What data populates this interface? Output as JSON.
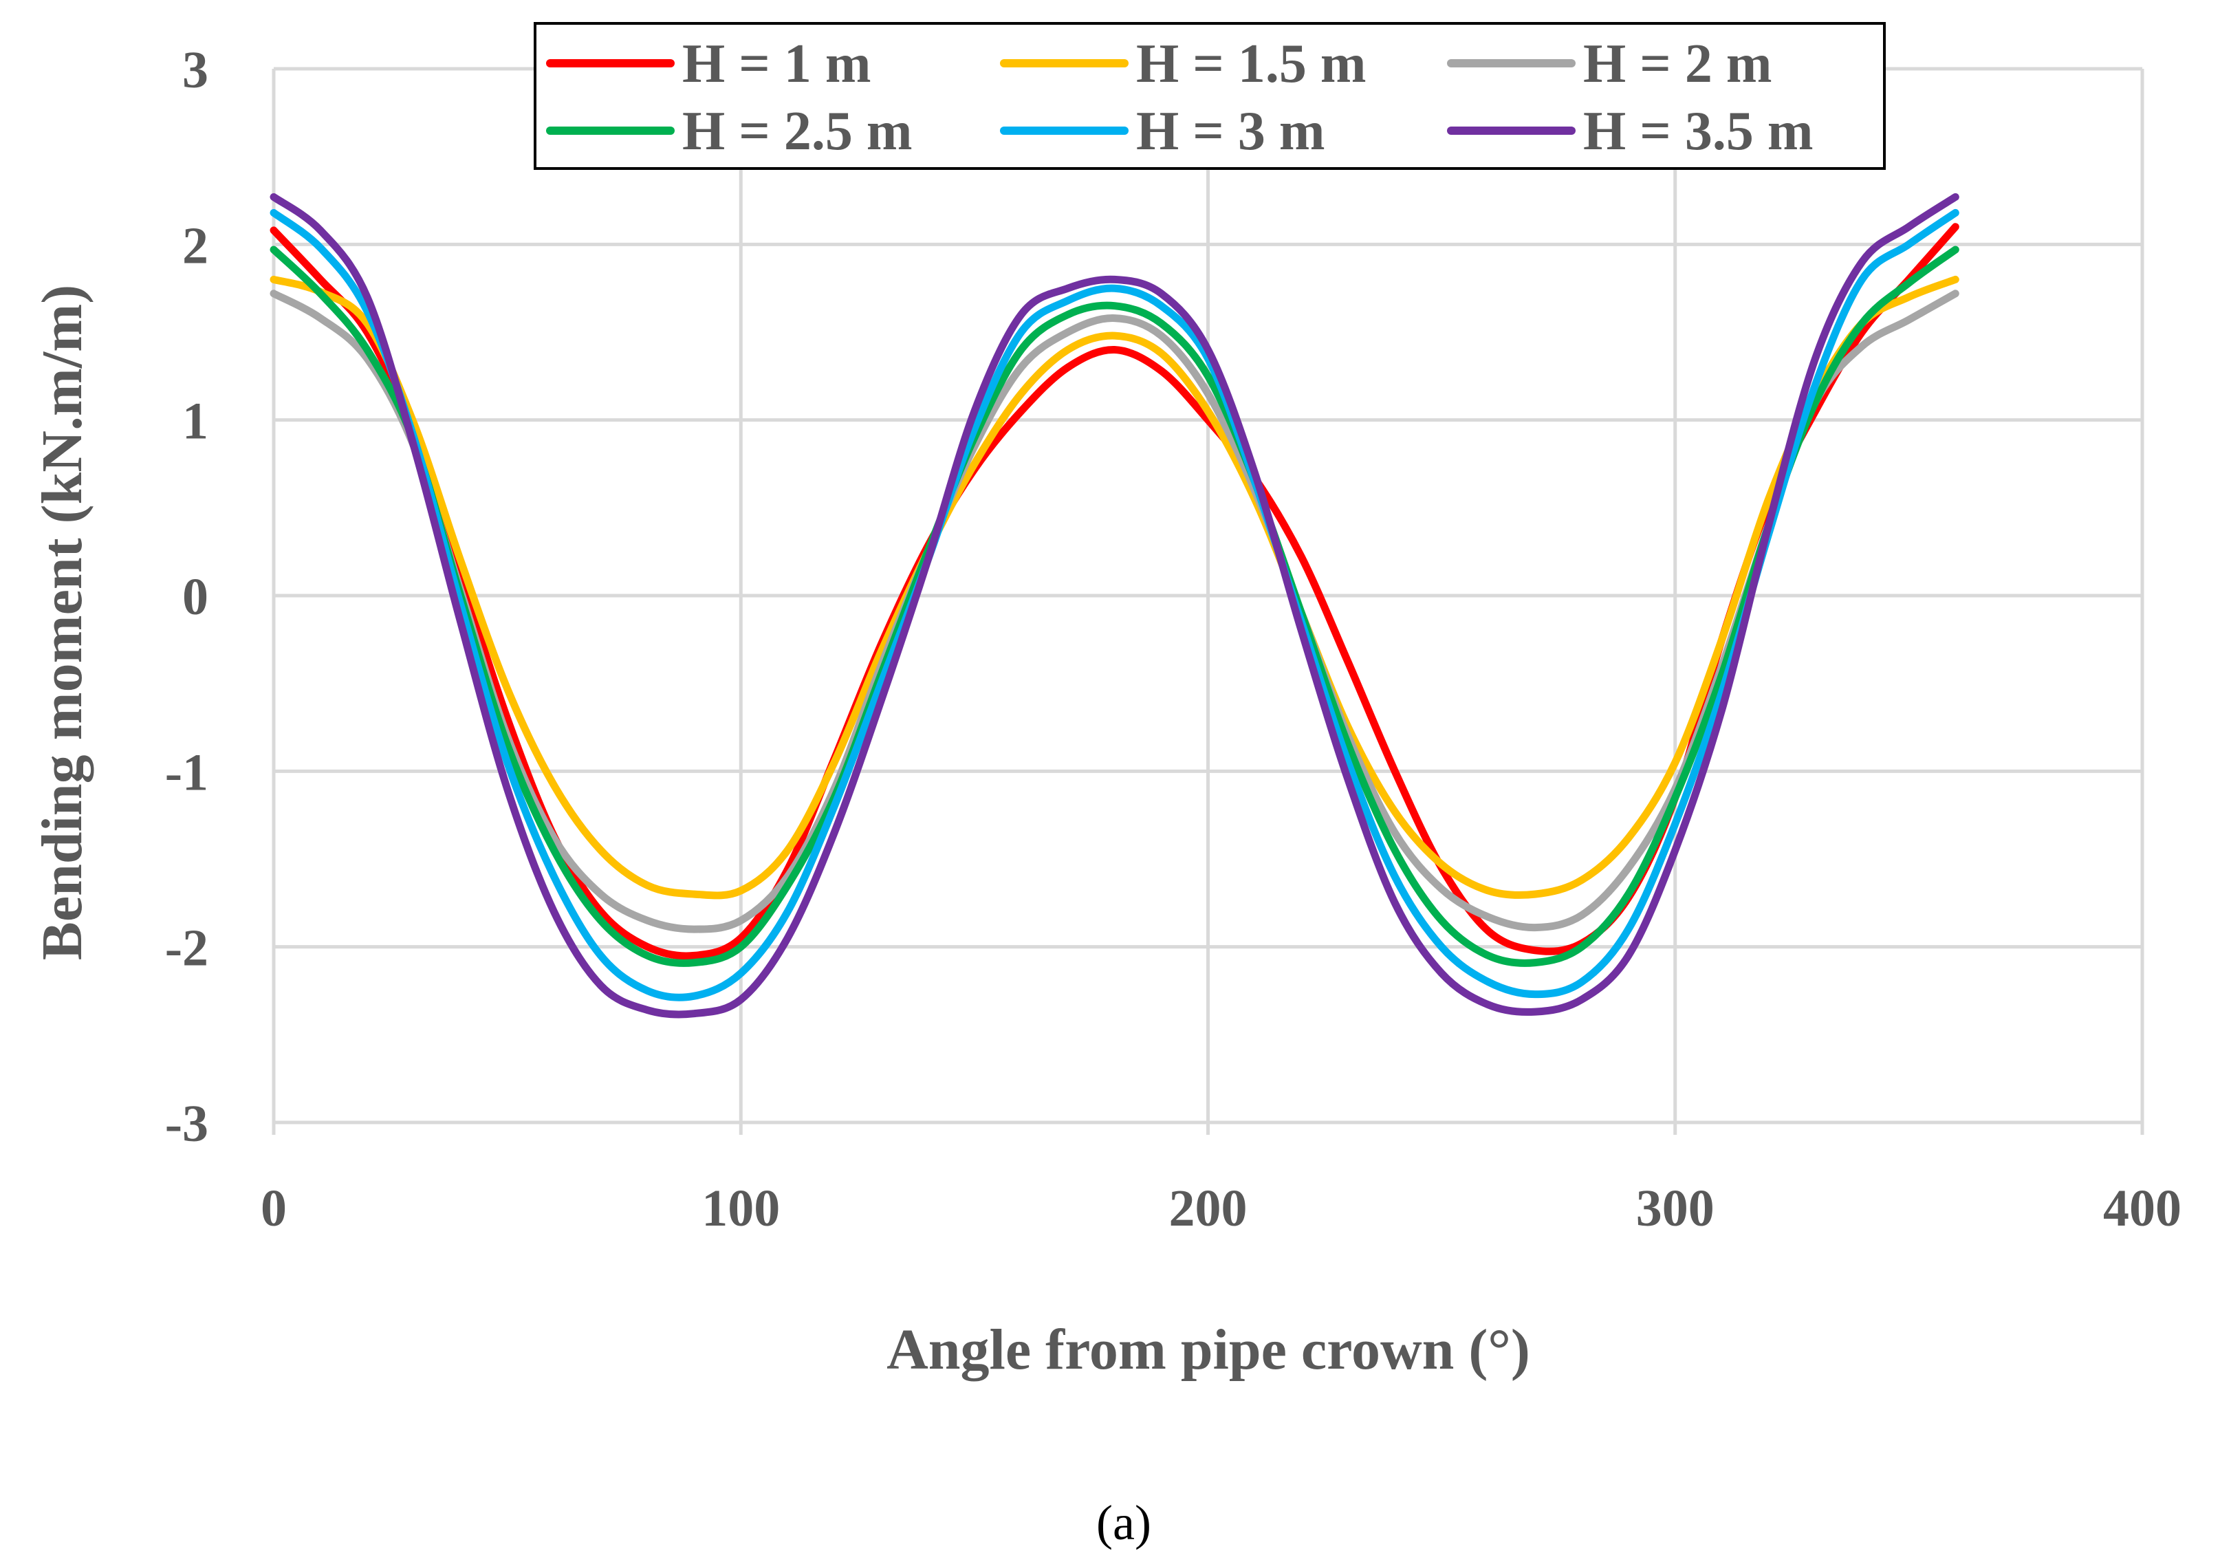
{
  "chart_data": {
    "type": "line",
    "title": "",
    "xlabel": "Angle from pipe crown (°)",
    "ylabel": "Bending moment (kN.m/m)",
    "xlim": [
      0,
      400
    ],
    "ylim": [
      -3,
      3
    ],
    "xticks": [
      "0",
      "100",
      "200",
      "300",
      "400"
    ],
    "yticks": [
      "3",
      "2",
      "1",
      "0",
      "-1",
      "-2",
      "-3"
    ],
    "grid": true,
    "legend_position": "top",
    "x": [
      0,
      10,
      20,
      30,
      40,
      50,
      60,
      70,
      80,
      90,
      100,
      110,
      120,
      130,
      140,
      150,
      160,
      170,
      180,
      190,
      200,
      210,
      220,
      230,
      240,
      250,
      260,
      270,
      280,
      290,
      300,
      310,
      320,
      330,
      340,
      350,
      360
    ],
    "series": [
      {
        "name": "H = 1 m",
        "color": "#ff0000",
        "values": [
          2.08,
          1.8,
          1.5,
          0.93,
          0.11,
          -0.7,
          -1.37,
          -1.8,
          -2.0,
          -2.05,
          -1.95,
          -1.56,
          -0.93,
          -0.28,
          0.28,
          0.72,
          1.05,
          1.3,
          1.4,
          1.28,
          1.0,
          0.67,
          0.22,
          -0.38,
          -1.0,
          -1.55,
          -1.91,
          -2.02,
          -1.98,
          -1.72,
          -1.15,
          -0.25,
          0.52,
          1.05,
          1.5,
          1.8,
          2.1
        ]
      },
      {
        "name": "H = 1.5 m",
        "color": "#ffc000",
        "values": [
          1.8,
          1.73,
          1.55,
          0.98,
          0.2,
          -0.53,
          -1.08,
          -1.45,
          -1.65,
          -1.7,
          -1.68,
          -1.45,
          -0.95,
          -0.32,
          0.25,
          0.75,
          1.15,
          1.4,
          1.48,
          1.38,
          1.05,
          0.55,
          -0.1,
          -0.75,
          -1.23,
          -1.53,
          -1.68,
          -1.7,
          -1.62,
          -1.38,
          -0.95,
          -0.25,
          0.55,
          1.15,
          1.55,
          1.7,
          1.8
        ]
      },
      {
        "name": "H = 2 m",
        "color": "#a6a6a6",
        "values": [
          1.72,
          1.58,
          1.35,
          0.85,
          0.03,
          -0.8,
          -1.38,
          -1.7,
          -1.85,
          -1.9,
          -1.85,
          -1.6,
          -1.1,
          -0.4,
          0.25,
          0.85,
          1.3,
          1.5,
          1.58,
          1.48,
          1.15,
          0.6,
          -0.1,
          -0.8,
          -1.35,
          -1.67,
          -1.83,
          -1.89,
          -1.82,
          -1.55,
          -1.1,
          -0.4,
          0.4,
          1.1,
          1.42,
          1.57,
          1.72
        ]
      },
      {
        "name": "H = 2.5 m",
        "color": "#00b050",
        "values": [
          1.97,
          1.72,
          1.4,
          0.88,
          0.0,
          -0.85,
          -1.45,
          -1.85,
          -2.05,
          -2.09,
          -2.0,
          -1.65,
          -1.15,
          -0.45,
          0.25,
          0.9,
          1.4,
          1.6,
          1.65,
          1.55,
          1.25,
          0.65,
          -0.1,
          -0.85,
          -1.45,
          -1.85,
          -2.05,
          -2.09,
          -2.0,
          -1.7,
          -1.15,
          -0.45,
          0.4,
          1.1,
          1.55,
          1.78,
          1.97
        ]
      },
      {
        "name": "H = 3 m",
        "color": "#00b0f0",
        "values": [
          2.18,
          1.98,
          1.62,
          0.9,
          -0.05,
          -0.95,
          -1.6,
          -2.05,
          -2.25,
          -2.28,
          -2.15,
          -1.8,
          -1.2,
          -0.5,
          0.2,
          0.95,
          1.5,
          1.68,
          1.75,
          1.65,
          1.35,
          0.65,
          -0.15,
          -0.95,
          -1.6,
          -2.0,
          -2.2,
          -2.27,
          -2.2,
          -1.9,
          -1.3,
          -0.55,
          0.35,
          1.2,
          1.8,
          2.0,
          2.18
        ]
      },
      {
        "name": "H = 3.5 m",
        "color": "#7030a0",
        "values": [
          2.27,
          2.08,
          1.7,
          0.85,
          -0.15,
          -1.1,
          -1.8,
          -2.22,
          -2.36,
          -2.38,
          -2.3,
          -1.95,
          -1.35,
          -0.6,
          0.2,
          1.05,
          1.6,
          1.75,
          1.8,
          1.72,
          1.4,
          0.7,
          -0.2,
          -1.05,
          -1.75,
          -2.15,
          -2.33,
          -2.37,
          -2.3,
          -2.05,
          -1.45,
          -0.65,
          0.4,
          1.35,
          1.9,
          2.1,
          2.27
        ]
      }
    ]
  },
  "caption": "(a)"
}
